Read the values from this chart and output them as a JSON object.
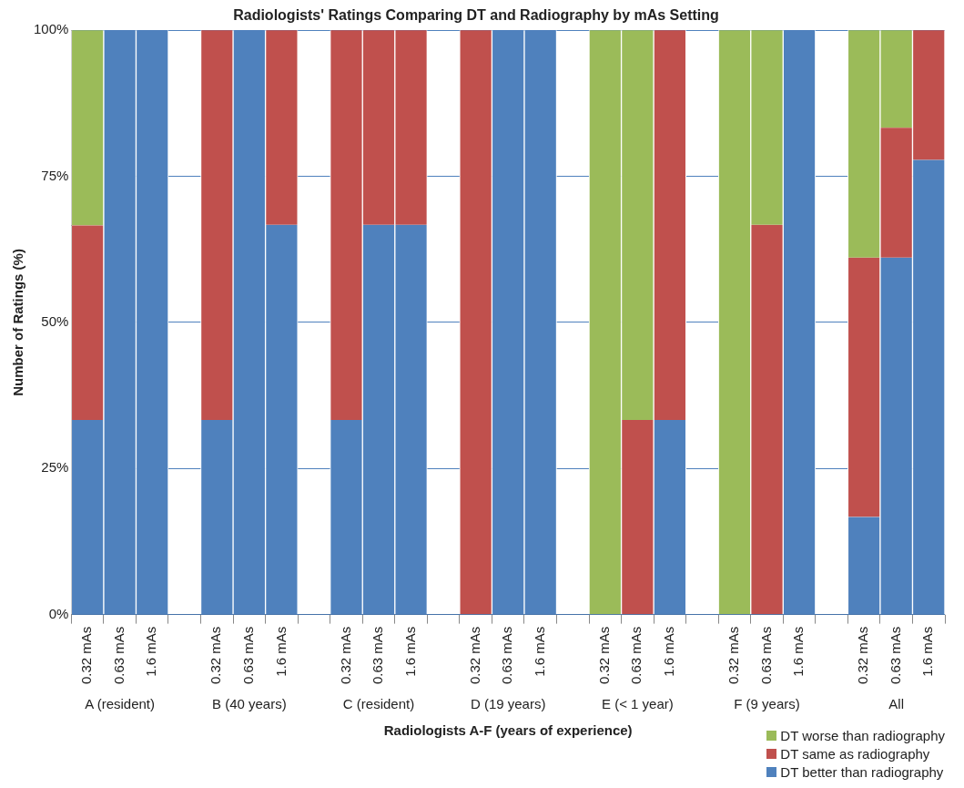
{
  "chart_data": {
    "type": "bar",
    "stacked": true,
    "title": "Radiologists' Ratings Comparing DT and Radiography by mAs Setting",
    "xlabel": "Radiologists A-F (years of experience)",
    "ylabel": "Number of Ratings (%)",
    "categories": [
      "0.32 mAs",
      "0.63 mAs",
      "1.6 mAs",
      null,
      "0.32 mAs",
      "0.63 mAs",
      "1.6 mAs",
      null,
      "0.32 mAs",
      "0.63 mAs",
      "1.6 mAs",
      null,
      "0.32 mAs",
      "0.63 mAs",
      "1.6 mAs",
      null,
      "0.32 mAs",
      "0.63 mAs",
      "1.6 mAs",
      null,
      "0.32 mAs",
      "0.63 mAs",
      "1.6 mAs",
      null,
      "0.32 mAs",
      "0.63 mAs",
      "1.6 mAs"
    ],
    "series": [
      {
        "name": "DT better than radiography",
        "color": "#4f81bd",
        "values": [
          33.3,
          100,
          100,
          null,
          33.3,
          100,
          66.7,
          null,
          33.3,
          66.7,
          66.7,
          null,
          0,
          100,
          100,
          null,
          0,
          0,
          33.3,
          null,
          0,
          0,
          100,
          null,
          16.7,
          61.1,
          77.8
        ]
      },
      {
        "name": "DT same as radiography",
        "color": "#c0504d",
        "values": [
          33.3,
          0,
          0,
          null,
          66.7,
          0,
          33.3,
          null,
          66.7,
          33.3,
          33.3,
          null,
          100,
          0,
          0,
          null,
          0,
          33.3,
          66.7,
          null,
          0,
          66.7,
          0,
          null,
          44.4,
          22.2,
          22.2
        ]
      },
      {
        "name": "DT worse than radiography",
        "color": "#9bbb59",
        "values": [
          33.4,
          0,
          0,
          null,
          0,
          0,
          0,
          null,
          0,
          0,
          0,
          null,
          0,
          0,
          0,
          null,
          100,
          66.7,
          0,
          null,
          100,
          33.3,
          0,
          null,
          38.9,
          16.7,
          0
        ]
      }
    ],
    "annotations": [
      "A (resident)",
      "B (40 years)",
      "C (resident)",
      "D (19 years)",
      "E (< 1 year)",
      "F (9 years)",
      "All"
    ],
    "ylim": [
      0,
      100
    ],
    "yticks": [
      {
        "value": 0,
        "label": "0%"
      },
      {
        "value": 25,
        "label": "25%"
      },
      {
        "value": 50,
        "label": "50%"
      },
      {
        "value": 75,
        "label": "75%"
      },
      {
        "value": 100,
        "label": "100%"
      }
    ],
    "grid": "y",
    "legend": "bottom right"
  }
}
